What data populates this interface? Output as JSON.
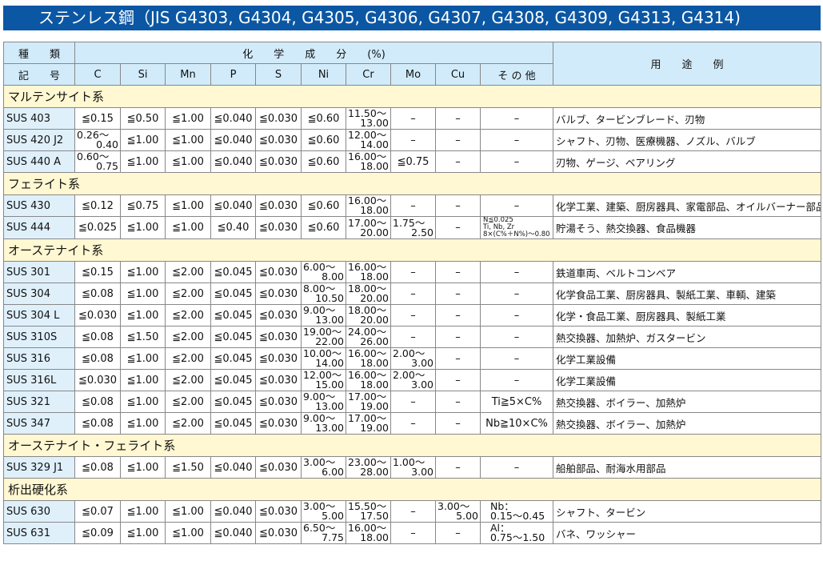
{
  "title": "ステンレス鋼（JIS G4303, G4304, G4305, G4306, G4307, G4308, G4309, G4313, G4314)",
  "header": {
    "type_top": "種　　類",
    "type_bottom": "記　　号",
    "chem": "化　　学　　成　　分　　(%)",
    "use": "用　　途　　例",
    "columns": [
      "C",
      "Si",
      "Mn",
      "P",
      "S",
      "Ni",
      "Cr",
      "Mo",
      "Cu",
      "そ の 他"
    ]
  },
  "sections": [
    {
      "name": "マルテンサイト系",
      "rows": [
        {
          "grade": "SUS 403",
          "vals": [
            "≦0.15",
            "≦0.50",
            "≦1.00",
            "≦0.040",
            "≦0.030",
            "≦0.60",
            "11.50～\n13.00",
            "–",
            "–",
            "–"
          ],
          "use": "バルブ、タービンブレード、刃物"
        },
        {
          "grade": "SUS 420 J2",
          "vals": [
            "0.26～\n0.40",
            "≦1.00",
            "≦1.00",
            "≦0.040",
            "≦0.030",
            "≦0.60",
            "12.00～\n14.00",
            "–",
            "–",
            "–"
          ],
          "use": "シャフト、刃物、医療機器、ノズル、バルブ"
        },
        {
          "grade": "SUS 440 A",
          "vals": [
            "0.60～\n0.75",
            "≦1.00",
            "≦1.00",
            "≦0.040",
            "≦0.030",
            "≦0.60",
            "16.00～\n18.00",
            "≦0.75",
            "–",
            "–"
          ],
          "use": "刃物、ゲージ、ベアリング"
        }
      ]
    },
    {
      "name": "フェライト系",
      "rows": [
        {
          "grade": "SUS 430",
          "vals": [
            "≦0.12",
            "≦0.75",
            "≦1.00",
            "≦0.040",
            "≦0.030",
            "≦0.60",
            "16.00～\n18.00",
            "–",
            "–",
            "–"
          ],
          "use": "化学工業、建築、厨房器具、家電部品、オイルバーナー部品"
        },
        {
          "grade": "SUS 444",
          "vals": [
            "≦0.025",
            "≦1.00",
            "≦1.00",
            "≦0.40",
            "≦0.030",
            "≦0.60",
            "17.00～\n20.00",
            "1.75～\n2.50",
            "–",
            "N≦0.025|Ti, Nb, Zr|8×(C%＋N%)～0.80"
          ],
          "use": "貯湯そう、熱交換器、食品機器"
        }
      ]
    },
    {
      "name": "オーステナイト系",
      "rows": [
        {
          "grade": "SUS 301",
          "vals": [
            "≦0.15",
            "≦1.00",
            "≦2.00",
            "≦0.045",
            "≦0.030",
            "6.00～\n8.00",
            "16.00～\n18.00",
            "–",
            "–",
            "–"
          ],
          "use": "鉄道車両、ベルトコンベア"
        },
        {
          "grade": "SUS 304",
          "vals": [
            "≦0.08",
            "≦1.00",
            "≦2.00",
            "≦0.045",
            "≦0.030",
            "8.00～\n10.50",
            "18.00～\n20.00",
            "–",
            "–",
            "–"
          ],
          "use": "化学食品工業、厨房器具、製紙工業、車輌、建築"
        },
        {
          "grade": "SUS 304 L",
          "vals": [
            "≦0.030",
            "≦1.00",
            "≦2.00",
            "≦0.045",
            "≦0.030",
            "9.00～\n13.00",
            "18.00～\n20.00",
            "–",
            "–",
            "–"
          ],
          "use": "化学・食品工業、厨房器具、製紙工業"
        },
        {
          "grade": "SUS 310S",
          "vals": [
            "≦0.08",
            "≦1.50",
            "≦2.00",
            "≦0.045",
            "≦0.030",
            "19.00～\n22.00",
            "24.00～\n26.00",
            "–",
            "–",
            "–"
          ],
          "use": "熱交換器、加熱炉、ガスタービン"
        },
        {
          "grade": "SUS 316",
          "vals": [
            "≦0.08",
            "≦1.00",
            "≦2.00",
            "≦0.045",
            "≦0.030",
            "10.00～\n14.00",
            "16.00～\n18.00",
            "2.00～\n3.00",
            "–",
            "–"
          ],
          "use": "化学工業設備"
        },
        {
          "grade": "SUS 316L",
          "vals": [
            "≦0.030",
            "≦1.00",
            "≦2.00",
            "≦0.045",
            "≦0.030",
            "12.00～\n15.00",
            "16.00～\n18.00",
            "2.00～\n3.00",
            "–",
            "–"
          ],
          "use": "化学工業設備"
        },
        {
          "grade": "SUS 321",
          "vals": [
            "≦0.08",
            "≦1.00",
            "≦2.00",
            "≦0.045",
            "≦0.030",
            "9.00～\n13.00",
            "17.00～\n19.00",
            "–",
            "–",
            "Ti≧5×C%"
          ],
          "use": "熱交換器、ボイラー、加熱炉"
        },
        {
          "grade": "SUS 347",
          "vals": [
            "≦0.08",
            "≦1.00",
            "≦2.00",
            "≦0.045",
            "≦0.030",
            "9.00～\n13.00",
            "17.00～\n19.00",
            "–",
            "–",
            "Nb≧10×C%"
          ],
          "use": "熱交換器、ボイラー、加熱炉"
        }
      ]
    },
    {
      "name": "オーステナイト・フェライト系",
      "rows": [
        {
          "grade": "SUS 329 J1",
          "vals": [
            "≦0.08",
            "≦1.00",
            "≦1.50",
            "≦0.040",
            "≦0.030",
            "3.00～\n6.00",
            "23.00～\n28.00",
            "1.00～\n3.00",
            "–",
            "–"
          ],
          "use": "船舶部品、耐海水用部品"
        }
      ]
    },
    {
      "name": "析出硬化系",
      "rows": [
        {
          "grade": "SUS 630",
          "vals": [
            "≦0.07",
            "≦1.00",
            "≦1.00",
            "≦0.040",
            "≦0.030",
            "3.00～\n5.00",
            "15.50～\n17.50",
            "–",
            "3.00～\n5.00",
            "Nb：\n0.15～0.45"
          ],
          "use": "シャフト、タービン"
        },
        {
          "grade": "SUS 631",
          "vals": [
            "≦0.09",
            "≦1.00",
            "≦1.00",
            "≦0.040",
            "≦0.030",
            "6.50～\n7.75",
            "16.00～\n18.00",
            "–",
            "–",
            "Al：\n0.75～1.50"
          ],
          "use": "バネ、ワッシャー"
        }
      ]
    }
  ]
}
